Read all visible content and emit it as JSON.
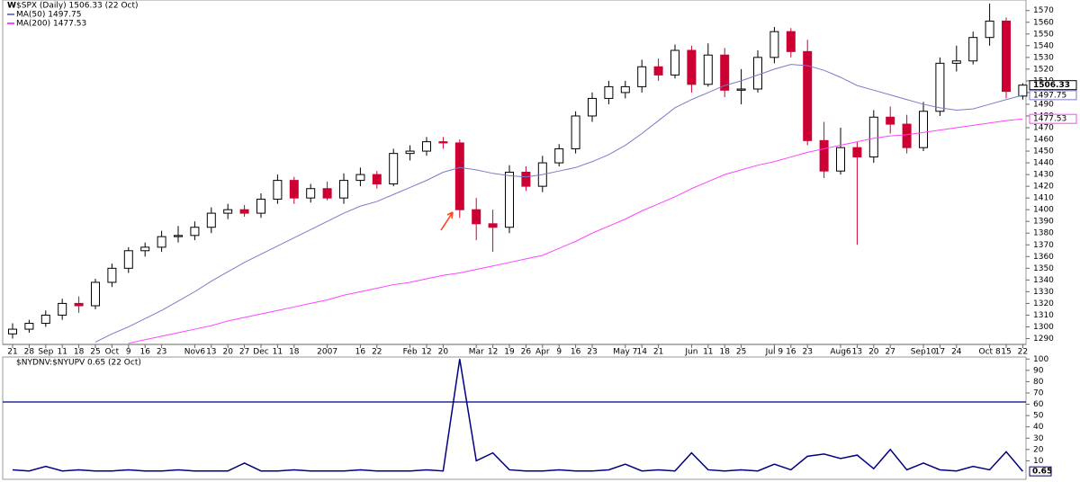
{
  "chart_data": [
    {
      "type": "candlestick",
      "title": "$SPX (Daily) 1506.33 (22 Oct)",
      "up_color": "#000000",
      "down_color": "#cc0033",
      "ylim": [
        1285,
        1579
      ],
      "yticks": [
        1290,
        1300,
        1310,
        1320,
        1330,
        1340,
        1350,
        1360,
        1370,
        1380,
        1390,
        1400,
        1410,
        1420,
        1430,
        1440,
        1450,
        1460,
        1470,
        1480,
        1490,
        1500,
        1510,
        1520,
        1530,
        1540,
        1550,
        1560,
        1570
      ],
      "xticks": [
        {
          "value": 0,
          "label": "21"
        },
        {
          "value": 1,
          "label": "28"
        },
        {
          "value": 2,
          "label": "Sep"
        },
        {
          "value": 3,
          "label": "11"
        },
        {
          "value": 4,
          "label": "18"
        },
        {
          "value": 5,
          "label": "25"
        },
        {
          "value": 6,
          "label": "Oct"
        },
        {
          "value": 7,
          "label": "9"
        },
        {
          "value": 8,
          "label": "16"
        },
        {
          "value": 9,
          "label": "23"
        },
        {
          "value": 11,
          "label": "Nov6"
        },
        {
          "value": 12,
          "label": "13"
        },
        {
          "value": 13,
          "label": "20"
        },
        {
          "value": 14,
          "label": "27"
        },
        {
          "value": 15,
          "label": "Dec"
        },
        {
          "value": 16,
          "label": "11"
        },
        {
          "value": 17,
          "label": "18"
        },
        {
          "value": 19,
          "label": "2007"
        },
        {
          "value": 21,
          "label": "16"
        },
        {
          "value": 22,
          "label": "22"
        },
        {
          "value": 24,
          "label": "Feb"
        },
        {
          "value": 25,
          "label": "12"
        },
        {
          "value": 26,
          "label": "20"
        },
        {
          "value": 28,
          "label": "Mar"
        },
        {
          "value": 29,
          "label": "12"
        },
        {
          "value": 30,
          "label": "19"
        },
        {
          "value": 31,
          "label": "26"
        },
        {
          "value": 32,
          "label": "Apr"
        },
        {
          "value": 33,
          "label": "9"
        },
        {
          "value": 34,
          "label": "16"
        },
        {
          "value": 35,
          "label": "23"
        },
        {
          "value": 37,
          "label": "May 7"
        },
        {
          "value": 38,
          "label": "14"
        },
        {
          "value": 39,
          "label": "21"
        },
        {
          "value": 41,
          "label": "Jun"
        },
        {
          "value": 42,
          "label": "11"
        },
        {
          "value": 43,
          "label": "18"
        },
        {
          "value": 44,
          "label": "25"
        },
        {
          "value": 46,
          "label": "Jul 9"
        },
        {
          "value": 47,
          "label": "16"
        },
        {
          "value": 48,
          "label": "23"
        },
        {
          "value": 50,
          "label": "Aug6"
        },
        {
          "value": 51,
          "label": "13"
        },
        {
          "value": 52,
          "label": "20"
        },
        {
          "value": 53,
          "label": "27"
        },
        {
          "value": 55,
          "label": "Sep10"
        },
        {
          "value": 56,
          "label": "17"
        },
        {
          "value": 57,
          "label": "24"
        },
        {
          "value": 59,
          "label": "Oct 8"
        },
        {
          "value": 60,
          "label": "15"
        },
        {
          "value": 61,
          "label": "22"
        }
      ],
      "open": [
        1294,
        1298,
        1303,
        1310,
        1320,
        1318,
        1338,
        1350,
        1365,
        1368,
        1377,
        1378,
        1385,
        1397,
        1400,
        1397,
        1409,
        1425,
        1410,
        1418,
        1410,
        1425,
        1430,
        1422,
        1448,
        1450,
        1458,
        1457,
        1400,
        1388,
        1385,
        1432,
        1420,
        1440,
        1452,
        1480,
        1495,
        1500,
        1505,
        1522,
        1515,
        1536,
        1507,
        1532,
        1502,
        1503,
        1530,
        1552,
        1535,
        1459,
        1433,
        1453,
        1445,
        1479,
        1473,
        1453,
        1484,
        1525,
        1527,
        1547,
        1561,
        1497
      ],
      "high": [
        1303,
        1306,
        1314,
        1324,
        1326,
        1341,
        1354,
        1368,
        1372,
        1382,
        1386,
        1390,
        1402,
        1405,
        1404,
        1414,
        1430,
        1428,
        1422,
        1424,
        1431,
        1436,
        1433,
        1452,
        1455,
        1462,
        1462,
        1460,
        1410,
        1400,
        1438,
        1437,
        1446,
        1456,
        1484,
        1500,
        1510,
        1510,
        1528,
        1529,
        1541,
        1540,
        1542,
        1538,
        1520,
        1536,
        1556,
        1555,
        1545,
        1475,
        1470,
        1458,
        1485,
        1488,
        1481,
        1492,
        1530,
        1540,
        1552,
        1576,
        1564,
        1508
      ],
      "low": [
        1290,
        1295,
        1300,
        1306,
        1312,
        1315,
        1334,
        1346,
        1360,
        1364,
        1372,
        1374,
        1380,
        1392,
        1394,
        1393,
        1405,
        1405,
        1406,
        1408,
        1405,
        1420,
        1418,
        1420,
        1442,
        1446,
        1452,
        1393,
        1374,
        1364,
        1380,
        1416,
        1415,
        1437,
        1448,
        1475,
        1490,
        1495,
        1500,
        1510,
        1512,
        1500,
        1505,
        1496,
        1490,
        1500,
        1525,
        1530,
        1455,
        1427,
        1430,
        1370,
        1440,
        1465,
        1448,
        1450,
        1480,
        1518,
        1524,
        1540,
        1495,
        1494
      ],
      "close": [
        1298,
        1303,
        1310,
        1320,
        1318,
        1338,
        1350,
        1365,
        1368,
        1377,
        1378,
        1385,
        1397,
        1400,
        1397,
        1409,
        1425,
        1410,
        1418,
        1410,
        1425,
        1430,
        1422,
        1448,
        1450,
        1458,
        1457,
        1400,
        1388,
        1385,
        1432,
        1420,
        1440,
        1452,
        1480,
        1495,
        1505,
        1505,
        1522,
        1515,
        1536,
        1507,
        1532,
        1502,
        1503,
        1530,
        1552,
        1535,
        1459,
        1433,
        1453,
        1445,
        1479,
        1473,
        1453,
        1484,
        1525,
        1527,
        1547,
        1561,
        1501,
        1506.33
      ],
      "overlays": [
        {
          "name": "MA(50) 1497.75",
          "color": "#7b7bc8",
          "values": [
            null,
            null,
            null,
            null,
            null,
            1287,
            1294,
            1300,
            1307,
            1314,
            1322,
            1330,
            1339,
            1347,
            1355,
            1362,
            1369,
            1376,
            1383,
            1390,
            1397,
            1403,
            1407,
            1413,
            1419,
            1425,
            1432,
            1436,
            1434,
            1431,
            1429,
            1428,
            1430,
            1433,
            1436,
            1441,
            1447,
            1455,
            1465,
            1476,
            1487,
            1494,
            1500,
            1506,
            1510,
            1515,
            1520,
            1524,
            1523,
            1519,
            1513,
            1506,
            1502,
            1498,
            1494,
            1490,
            1487,
            1485,
            1486,
            1490,
            1494,
            1497.75
          ]
        },
        {
          "name": "MA(200) 1477.53",
          "color": "#ff44ff",
          "values": [
            null,
            null,
            null,
            null,
            null,
            null,
            null,
            1286,
            1289,
            1292,
            1295,
            1298,
            1301,
            1305,
            1308,
            1311,
            1314,
            1317,
            1320,
            1323,
            1327,
            1330,
            1333,
            1336,
            1338,
            1341,
            1344,
            1346,
            1349,
            1352,
            1355,
            1358,
            1361,
            1367,
            1373,
            1380,
            1386,
            1392,
            1399,
            1405,
            1411,
            1418,
            1424,
            1430,
            1434,
            1438,
            1441,
            1445,
            1449,
            1452,
            1455,
            1458,
            1461,
            1463,
            1464,
            1466,
            1468,
            1470,
            1472,
            1474,
            1476,
            1477.53
          ]
        }
      ]
    },
    {
      "type": "line",
      "title": "$NYDNV:$NYUPV 0.65 (22 Oct)",
      "color": "#000080",
      "ylim": [
        -4,
        101
      ],
      "yticks": [
        10,
        20,
        30,
        40,
        50,
        60,
        70,
        80,
        90,
        100
      ],
      "hline": 62,
      "values": [
        2,
        1,
        5,
        1,
        2,
        1,
        1,
        2,
        1,
        1,
        2,
        1,
        1,
        1,
        8,
        1,
        1,
        2,
        1,
        1,
        1,
        2,
        1,
        1,
        1,
        2,
        1,
        100,
        10,
        17,
        2,
        1,
        1,
        2,
        1,
        1,
        2,
        7,
        1,
        2,
        1,
        17,
        2,
        1,
        2,
        1,
        7,
        2,
        14,
        16,
        12,
        15,
        3,
        20,
        2,
        8,
        2,
        1,
        5,
        2,
        18,
        0.65
      ]
    }
  ]
}
